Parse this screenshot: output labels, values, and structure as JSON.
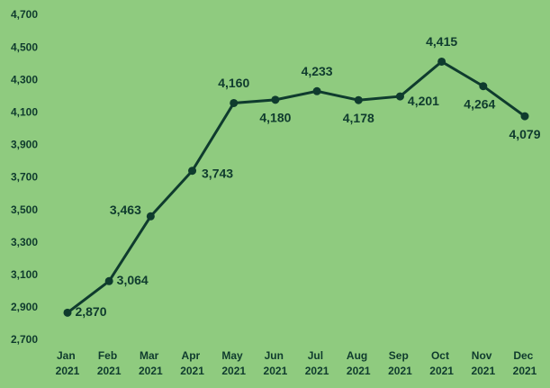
{
  "chart_data": {
    "type": "line",
    "categories": [
      "Jan 2021",
      "Feb 2021",
      "Mar 2021",
      "Apr 2021",
      "May 2021",
      "Jun 2021",
      "Jul 2021",
      "Aug 2021",
      "Sep 2021",
      "Oct 2021",
      "Nov 2021",
      "Dec 2021"
    ],
    "values": [
      2870,
      3064,
      3463,
      3743,
      4160,
      4180,
      4233,
      4178,
      4201,
      4415,
      4264,
      4079
    ],
    "value_labels": [
      "2,870",
      "3,064",
      "3,463",
      "3,743",
      "4,160",
      "4,180",
      "4,233",
      "4,178",
      "4,201",
      "4,415",
      "4,264",
      "4,079"
    ],
    "color": "#0f3b2e",
    "ylim": [
      2700,
      4700
    ],
    "yticks": [
      {
        "value": 2700,
        "label": "2,700"
      },
      {
        "value": 2900,
        "label": "2,900"
      },
      {
        "value": 3100,
        "label": "3,100"
      },
      {
        "value": 3300,
        "label": "3,300"
      },
      {
        "value": 3500,
        "label": "3,500"
      },
      {
        "value": 3700,
        "label": "3,700"
      },
      {
        "value": 3900,
        "label": "3,900"
      },
      {
        "value": 4100,
        "label": "4,100"
      },
      {
        "value": 4300,
        "label": "4,300"
      },
      {
        "value": 4500,
        "label": "4,500"
      },
      {
        "value": 4700,
        "label": "4,700"
      }
    ],
    "grid": false
  }
}
